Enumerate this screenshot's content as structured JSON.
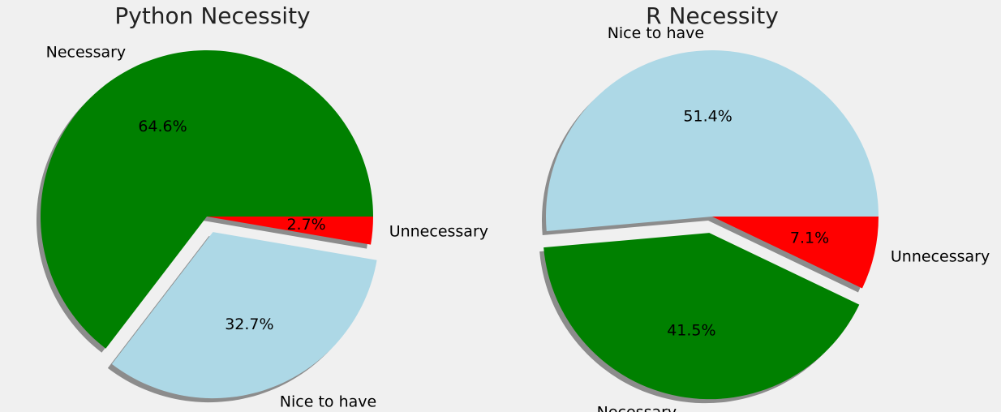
{
  "chart_data": [
    {
      "type": "pie",
      "title": "Python Necessity",
      "start_angle_deg": 0,
      "direction": "counterclockwise",
      "shadow": true,
      "slices": [
        {
          "label": "Necessary",
          "value": 64.6,
          "pct_label": "64.6%",
          "color": "#008000",
          "explode": 0.0
        },
        {
          "label": "Nice to have",
          "value": 32.7,
          "pct_label": "32.7%",
          "color": "#add8e6",
          "explode": 0.1
        },
        {
          "label": "Unnecessary",
          "value": 2.7,
          "pct_label": "2.7%",
          "color": "#ff0000",
          "explode": 0.0
        }
      ]
    },
    {
      "type": "pie",
      "title": "R Necessity",
      "start_angle_deg": 0,
      "direction": "counterclockwise",
      "shadow": true,
      "slices": [
        {
          "label": "Nice to have",
          "value": 51.4,
          "pct_label": "51.4%",
          "color": "#add8e6",
          "explode": 0.0
        },
        {
          "label": "Necessary",
          "value": 41.5,
          "pct_label": "41.5%",
          "color": "#008000",
          "explode": 0.1
        },
        {
          "label": "Unnecessary",
          "value": 7.1,
          "pct_label": "7.1%",
          "color": "#ff0000",
          "explode": 0.0
        }
      ]
    }
  ]
}
